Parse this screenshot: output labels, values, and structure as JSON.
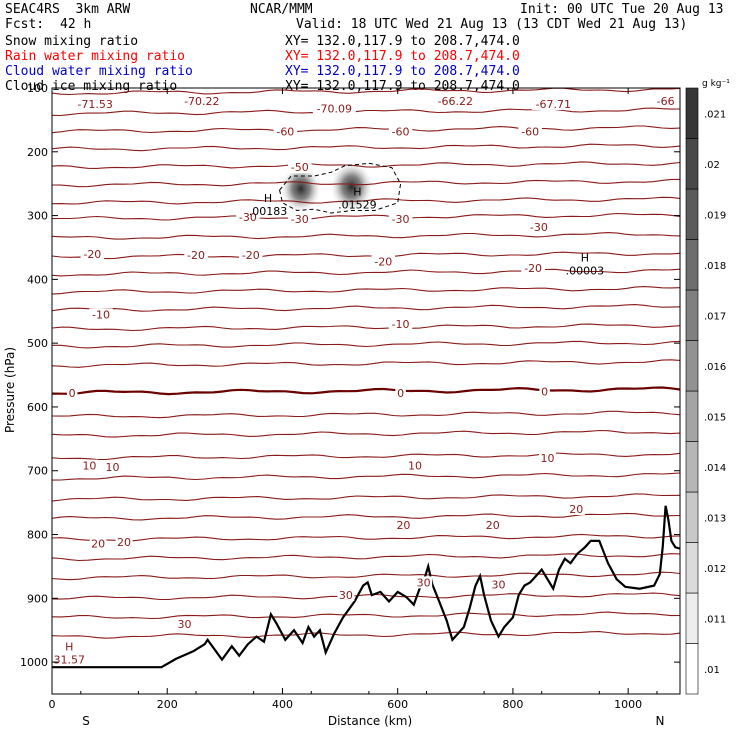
{
  "header": {
    "model": "SEAC4RS  3km ARW",
    "org": "NCAR/MMM",
    "init": "Init: 00 UTC Tue 20 Aug 13",
    "fcst_label": "Fcst:",
    "fcst_value": "42 h",
    "valid": "Valid: 18 UTC Wed 21 Aug 13 (13 CDT Wed 21 Aug 13)"
  },
  "fields": [
    {
      "name": "Snow mixing ratio",
      "xy": "XY= 132.0,117.9 to 208.7,474.0",
      "color": "#000000"
    },
    {
      "name": "Rain water mixing ratio",
      "xy": "XY= 132.0,117.9 to 208.7,474.0",
      "color": "#ff0000"
    },
    {
      "name": "Cloud water mixing ratio",
      "xy": "XY= 132.0,117.9 to 208.7,474.0",
      "color": "#0000cc"
    },
    {
      "name": "Cloud ice mixing ratio",
      "xy": "XY= 132.0,117.9 to 208.7,474.0",
      "color": "#000000"
    }
  ],
  "chart_data": {
    "type": "contour",
    "xlabel": "Distance (km)",
    "ylabel": "Pressure (hPa)",
    "xlim": [
      0,
      1090
    ],
    "ylim": [
      1050,
      100
    ],
    "xticks": [
      0,
      200,
      400,
      600,
      800,
      1000
    ],
    "yticks": [
      100,
      200,
      300,
      400,
      500,
      600,
      700,
      800,
      900,
      1000
    ],
    "ytick_labels": [
      "100",
      "200",
      "300",
      "400",
      "500",
      "600",
      "700",
      "800",
      "900",
      "1000"
    ],
    "x_end_labels": {
      "left": "S",
      "right": "N"
    },
    "contour_color": "#8b1a1a",
    "zero_contour_color": "#6b0000",
    "temperature_contour_levels": [
      {
        "p": 108,
        "label": ""
      },
      {
        "p": 140,
        "label": ""
      },
      {
        "p": 168,
        "label": "-60"
      },
      {
        "p": 196,
        "label": ""
      },
      {
        "p": 224,
        "label": "-50"
      },
      {
        "p": 252,
        "label": ""
      },
      {
        "p": 280,
        "label": ""
      },
      {
        "p": 305,
        "label": "-30"
      },
      {
        "p": 335,
        "label": ""
      },
      {
        "p": 365,
        "label": "-20"
      },
      {
        "p": 392,
        "label": ""
      },
      {
        "p": 420,
        "label": ""
      },
      {
        "p": 448,
        "label": "-10"
      },
      {
        "p": 478,
        "label": ""
      },
      {
        "p": 505,
        "label": ""
      },
      {
        "p": 535,
        "label": ""
      },
      {
        "p": 578,
        "label": "0"
      },
      {
        "p": 615,
        "label": ""
      },
      {
        "p": 645,
        "label": ""
      },
      {
        "p": 680,
        "label": "10"
      },
      {
        "p": 712,
        "label": ""
      },
      {
        "p": 745,
        "label": ""
      },
      {
        "p": 775,
        "label": "20"
      },
      {
        "p": 808,
        "label": ""
      },
      {
        "p": 838,
        "label": ""
      },
      {
        "p": 868,
        "label": "30"
      },
      {
        "p": 900,
        "label": ""
      },
      {
        "p": 930,
        "label": ""
      },
      {
        "p": 960,
        "label": ""
      }
    ],
    "contour_labels": [
      {
        "x": 75,
        "p": 125,
        "text": "-71.53"
      },
      {
        "x": 260,
        "p": 120,
        "text": "-70.22"
      },
      {
        "x": 490,
        "p": 132,
        "text": "-70.09"
      },
      {
        "x": 700,
        "p": 120,
        "text": "-66.22"
      },
      {
        "x": 870,
        "p": 125,
        "text": "-67.71"
      },
      {
        "x": 1065,
        "p": 120,
        "text": "-66"
      },
      {
        "x": 405,
        "p": 168,
        "text": "-60"
      },
      {
        "x": 605,
        "p": 168,
        "text": "-60"
      },
      {
        "x": 830,
        "p": 168,
        "text": "-60"
      },
      {
        "x": 430,
        "p": 224,
        "text": "-50"
      },
      {
        "x": 340,
        "p": 302,
        "text": "-30"
      },
      {
        "x": 430,
        "p": 305,
        "text": "-30"
      },
      {
        "x": 605,
        "p": 305,
        "text": "-30"
      },
      {
        "x": 845,
        "p": 318,
        "text": "-30"
      },
      {
        "x": 70,
        "p": 360,
        "text": "-20"
      },
      {
        "x": 250,
        "p": 362,
        "text": "-20"
      },
      {
        "x": 345,
        "p": 362,
        "text": "-20"
      },
      {
        "x": 575,
        "p": 372,
        "text": "-20"
      },
      {
        "x": 835,
        "p": 382,
        "text": "-20"
      },
      {
        "x": 85,
        "p": 455,
        "text": "-10"
      },
      {
        "x": 605,
        "p": 470,
        "text": "-10"
      },
      {
        "x": 35,
        "p": 578,
        "text": "0"
      },
      {
        "x": 605,
        "p": 578,
        "text": "0"
      },
      {
        "x": 855,
        "p": 576,
        "text": "0"
      },
      {
        "x": 65,
        "p": 692,
        "text": "10"
      },
      {
        "x": 105,
        "p": 694,
        "text": "10"
      },
      {
        "x": 630,
        "p": 692,
        "text": "10"
      },
      {
        "x": 860,
        "p": 680,
        "text": "10"
      },
      {
        "x": 80,
        "p": 814,
        "text": "20"
      },
      {
        "x": 125,
        "p": 812,
        "text": "20"
      },
      {
        "x": 610,
        "p": 785,
        "text": "20"
      },
      {
        "x": 765,
        "p": 785,
        "text": "20"
      },
      {
        "x": 910,
        "p": 760,
        "text": "20"
      },
      {
        "x": 230,
        "p": 940,
        "text": "30"
      },
      {
        "x": 510,
        "p": 895,
        "text": "30"
      },
      {
        "x": 645,
        "p": 875,
        "text": "30"
      },
      {
        "x": 775,
        "p": 878,
        "text": "30"
      }
    ],
    "extrema": [
      {
        "x": 375,
        "p": 282,
        "mark": "H",
        "value": ".00183",
        "color": "#000000"
      },
      {
        "x": 530,
        "p": 272,
        "mark": "H",
        "value": ".01529",
        "color": "#000000"
      },
      {
        "x": 925,
        "p": 375,
        "mark": "H",
        "value": ".00003",
        "color": "#000000"
      },
      {
        "x": 30,
        "p": 985,
        "mark": "H",
        "value": "31.57",
        "color": "#8b1a1a"
      }
    ],
    "shaded_maxima": [
      {
        "x": 432,
        "p": 258,
        "value": 0.019
      },
      {
        "x": 520,
        "p": 255,
        "value": 0.021
      }
    ],
    "cloud_outline": [
      [
        395,
        260
      ],
      [
        415,
        238
      ],
      [
        455,
        238
      ],
      [
        485,
        232
      ],
      [
        508,
        222
      ],
      [
        550,
        218
      ],
      [
        590,
        225
      ],
      [
        605,
        250
      ],
      [
        600,
        280
      ],
      [
        560,
        292
      ],
      [
        520,
        292
      ],
      [
        485,
        296
      ],
      [
        455,
        290
      ],
      [
        425,
        292
      ],
      [
        400,
        280
      ]
    ],
    "terrain": [
      [
        0,
        1008
      ],
      [
        190,
        1008
      ],
      [
        215,
        995
      ],
      [
        245,
        983
      ],
      [
        265,
        972
      ],
      [
        270,
        965
      ],
      [
        282,
        980
      ],
      [
        295,
        996
      ],
      [
        312,
        975
      ],
      [
        325,
        990
      ],
      [
        340,
        972
      ],
      [
        355,
        960
      ],
      [
        368,
        968
      ],
      [
        380,
        925
      ],
      [
        390,
        940
      ],
      [
        405,
        965
      ],
      [
        420,
        950
      ],
      [
        435,
        970
      ],
      [
        445,
        945
      ],
      [
        455,
        960
      ],
      [
        465,
        950
      ],
      [
        475,
        985
      ],
      [
        490,
        955
      ],
      [
        505,
        930
      ],
      [
        525,
        905
      ],
      [
        540,
        880
      ],
      [
        548,
        875
      ],
      [
        555,
        895
      ],
      [
        570,
        890
      ],
      [
        585,
        905
      ],
      [
        600,
        890
      ],
      [
        615,
        898
      ],
      [
        628,
        910
      ],
      [
        640,
        880
      ],
      [
        648,
        865
      ],
      [
        653,
        850
      ],
      [
        660,
        878
      ],
      [
        672,
        905
      ],
      [
        685,
        935
      ],
      [
        695,
        965
      ],
      [
        705,
        955
      ],
      [
        715,
        945
      ],
      [
        725,
        915
      ],
      [
        735,
        880
      ],
      [
        743,
        865
      ],
      [
        750,
        895
      ],
      [
        762,
        935
      ],
      [
        775,
        960
      ],
      [
        785,
        945
      ],
      [
        800,
        930
      ],
      [
        810,
        895
      ],
      [
        820,
        880
      ],
      [
        830,
        875
      ],
      [
        840,
        865
      ],
      [
        850,
        855
      ],
      [
        860,
        870
      ],
      [
        870,
        885
      ],
      [
        880,
        855
      ],
      [
        890,
        838
      ],
      [
        900,
        845
      ],
      [
        912,
        830
      ],
      [
        925,
        820
      ],
      [
        935,
        810
      ],
      [
        950,
        810
      ],
      [
        965,
        845
      ],
      [
        980,
        870
      ],
      [
        995,
        882
      ],
      [
        1020,
        885
      ],
      [
        1045,
        880
      ],
      [
        1055,
        862
      ],
      [
        1060,
        820
      ],
      [
        1065,
        755
      ],
      [
        1070,
        778
      ],
      [
        1075,
        810
      ],
      [
        1082,
        820
      ],
      [
        1090,
        822
      ]
    ],
    "colorbar": {
      "unit": "g kg⁻¹",
      "levels": [
        0.01,
        0.011,
        0.012,
        0.013,
        0.014,
        0.015,
        0.016,
        0.017,
        0.018,
        0.019,
        0.02,
        0.021
      ],
      "labels": [
        ".01",
        ".011",
        ".012",
        ".013",
        ".014",
        ".015",
        ".016",
        ".017",
        ".018",
        ".019",
        ".02",
        ".021"
      ]
    }
  }
}
